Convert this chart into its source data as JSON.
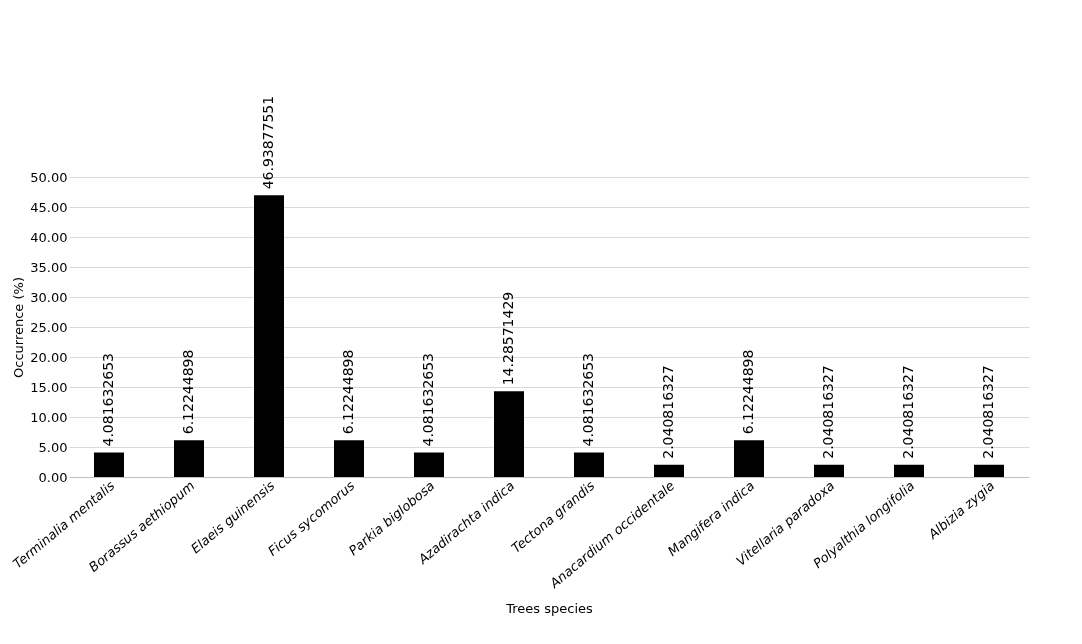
{
  "chart_data": {
    "type": "bar",
    "xlabel": "Trees species",
    "ylabel": "Occurrence (%)",
    "categories": [
      "Terminalia mentalis",
      "Borassus aethiopum",
      "Elaeis guinensis",
      "Ficus sycomorus",
      "Parkia biglobosa",
      "Azadirachta indica",
      "Tectona grandis",
      "Anacardium occidentale",
      "Mangifera indica",
      "Vitellaria paradoxa",
      "Polyalthia longifolia",
      "Albizia zygia"
    ],
    "values": [
      4.081632653,
      6.12244898,
      46.93877551,
      6.12244898,
      4.081632653,
      14.28571429,
      4.081632653,
      2.040816327,
      6.12244898,
      2.040816327,
      2.040816327,
      2.040816327
    ],
    "color": "#000000",
    "data_labels": true,
    "grid": "y",
    "ylim": [
      0,
      50
    ],
    "yticks": [
      {
        "value": 0,
        "label": "0.00"
      },
      {
        "value": 5,
        "label": "5.00"
      },
      {
        "value": 10,
        "label": "10.00"
      },
      {
        "value": 15,
        "label": "15.00"
      },
      {
        "value": 20,
        "label": "20.00"
      },
      {
        "value": 25,
        "label": "25.00"
      },
      {
        "value": 30,
        "label": "30.00"
      },
      {
        "value": 35,
        "label": "35.00"
      },
      {
        "value": 40,
        "label": "40.00"
      },
      {
        "value": 45,
        "label": "45.00"
      },
      {
        "value": 50,
        "label": "50.00"
      }
    ]
  }
}
